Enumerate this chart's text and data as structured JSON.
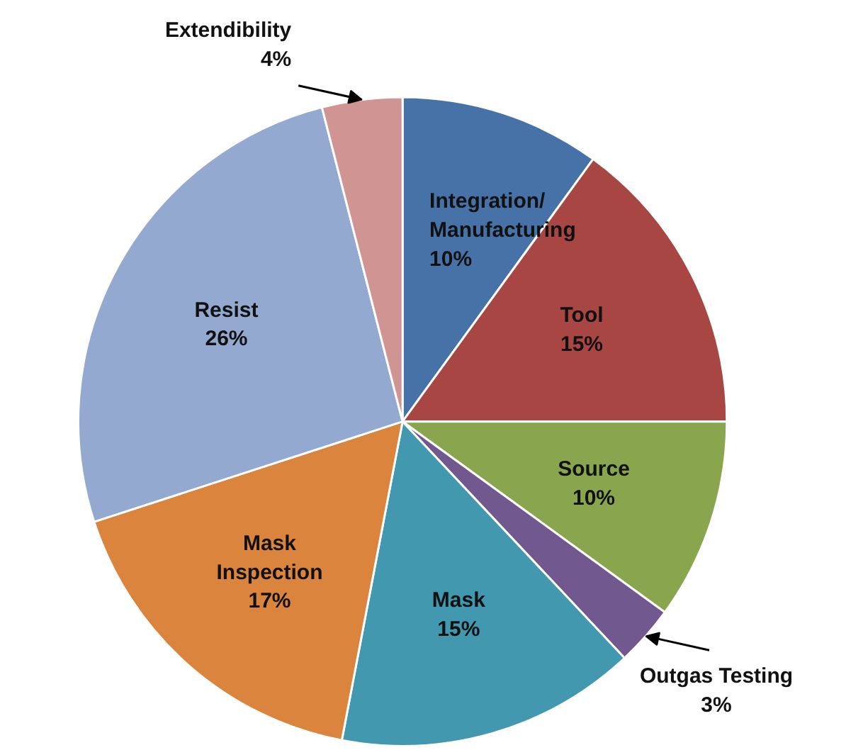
{
  "chart_data": {
    "type": "pie",
    "categories": [
      "Integration/ Manufacturing",
      "Tool",
      "Source",
      "Outgas Testing",
      "Mask",
      "Mask Inspection",
      "Resist",
      "Extendibility"
    ],
    "values": [
      10,
      15,
      10,
      3,
      15,
      17,
      26,
      4
    ],
    "value_labels": [
      "10%",
      "15%",
      "10%",
      "3%",
      "15%",
      "17%",
      "26%",
      "4%"
    ],
    "colors": [
      "#4672a8",
      "#a84643",
      "#89a64e",
      "#71588f",
      "#4198af",
      "#db843d",
      "#93a9cf",
      "#d09493"
    ],
    "legend": false
  }
}
